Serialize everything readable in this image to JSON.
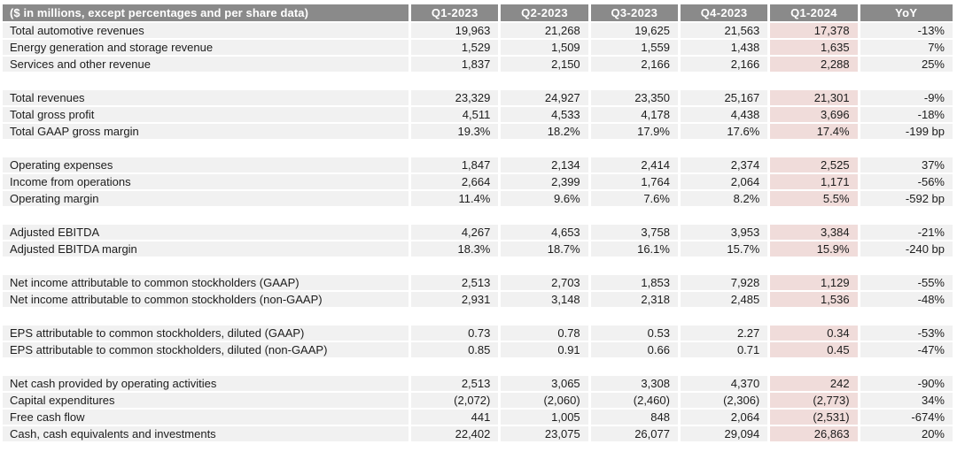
{
  "chart_data": {
    "type": "table",
    "title": "Financial summary table",
    "highlight_column": "Q1-2024",
    "header": {
      "label": "($ in millions, except percentages and per share data)",
      "columns": [
        "Q1-2023",
        "Q2-2023",
        "Q3-2023",
        "Q4-2023",
        "Q1-2024",
        "YoY"
      ]
    },
    "rows": [
      {
        "label": "Total automotive revenues",
        "values": [
          "19,963",
          "21,268",
          "19,625",
          "21,563",
          "17,378",
          "-13%"
        ]
      },
      {
        "label": "Energy generation and storage revenue",
        "values": [
          "1,529",
          "1,509",
          "1,559",
          "1,438",
          "1,635",
          "7%"
        ]
      },
      {
        "label": "Services and other revenue",
        "values": [
          "1,837",
          "2,150",
          "2,166",
          "2,166",
          "2,288",
          "25%"
        ]
      },
      {
        "spacer": true
      },
      {
        "label": "Total revenues",
        "values": [
          "23,329",
          "24,927",
          "23,350",
          "25,167",
          "21,301",
          "-9%"
        ]
      },
      {
        "label": "Total gross profit",
        "values": [
          "4,511",
          "4,533",
          "4,178",
          "4,438",
          "3,696",
          "-18%"
        ]
      },
      {
        "label": "Total GAAP gross margin",
        "values": [
          "19.3%",
          "18.2%",
          "17.9%",
          "17.6%",
          "17.4%",
          "-199 bp"
        ]
      },
      {
        "spacer": true
      },
      {
        "label": "Operating expenses",
        "values": [
          "1,847",
          "2,134",
          "2,414",
          "2,374",
          "2,525",
          "37%"
        ]
      },
      {
        "label": "Income from operations",
        "values": [
          "2,664",
          "2,399",
          "1,764",
          "2,064",
          "1,171",
          "-56%"
        ]
      },
      {
        "label": "Operating margin",
        "values": [
          "11.4%",
          "9.6%",
          "7.6%",
          "8.2%",
          "5.5%",
          "-592 bp"
        ]
      },
      {
        "spacer": true
      },
      {
        "label": "Adjusted EBITDA",
        "values": [
          "4,267",
          "4,653",
          "3,758",
          "3,953",
          "3,384",
          "-21%"
        ]
      },
      {
        "label": "Adjusted EBITDA margin",
        "values": [
          "18.3%",
          "18.7%",
          "16.1%",
          "15.7%",
          "15.9%",
          "-240 bp"
        ]
      },
      {
        "spacer": true
      },
      {
        "label": "Net income attributable to common stockholders (GAAP)",
        "values": [
          "2,513",
          "2,703",
          "1,853",
          "7,928",
          "1,129",
          "-55%"
        ]
      },
      {
        "label": "Net income attributable to common stockholders (non-GAAP)",
        "values": [
          "2,931",
          "3,148",
          "2,318",
          "2,485",
          "1,536",
          "-48%"
        ]
      },
      {
        "spacer": true
      },
      {
        "label": "EPS attributable to common stockholders, diluted (GAAP)",
        "values": [
          "0.73",
          "0.78",
          "0.53",
          "2.27",
          "0.34",
          "-53%"
        ]
      },
      {
        "label": "EPS attributable to common stockholders, diluted (non-GAAP)",
        "values": [
          "0.85",
          "0.91",
          "0.66",
          "0.71",
          "0.45",
          "-47%"
        ]
      },
      {
        "spacer": true
      },
      {
        "label": "Net cash provided by operating activities",
        "values": [
          "2,513",
          "3,065",
          "3,308",
          "4,370",
          "242",
          "-90%"
        ]
      },
      {
        "label": "Capital expenditures",
        "values": [
          "(2,072)",
          "(2,060)",
          "(2,460)",
          "(2,306)",
          "(2,773)",
          "34%"
        ]
      },
      {
        "label": "Free cash flow",
        "values": [
          "441",
          "1,005",
          "848",
          "2,064",
          "(2,531)",
          "-674%"
        ]
      },
      {
        "label": "Cash, cash equivalents and investments",
        "values": [
          "22,402",
          "23,075",
          "26,077",
          "29,094",
          "26,863",
          "20%"
        ]
      }
    ]
  },
  "colors": {
    "page_bg": "#ffffff",
    "header_bg": "#8a8a8a",
    "header_text": "#ffffff",
    "row_bg": "#f1f1f1",
    "highlight_bg": "#f0dcda",
    "text": "#1c1c1c"
  }
}
